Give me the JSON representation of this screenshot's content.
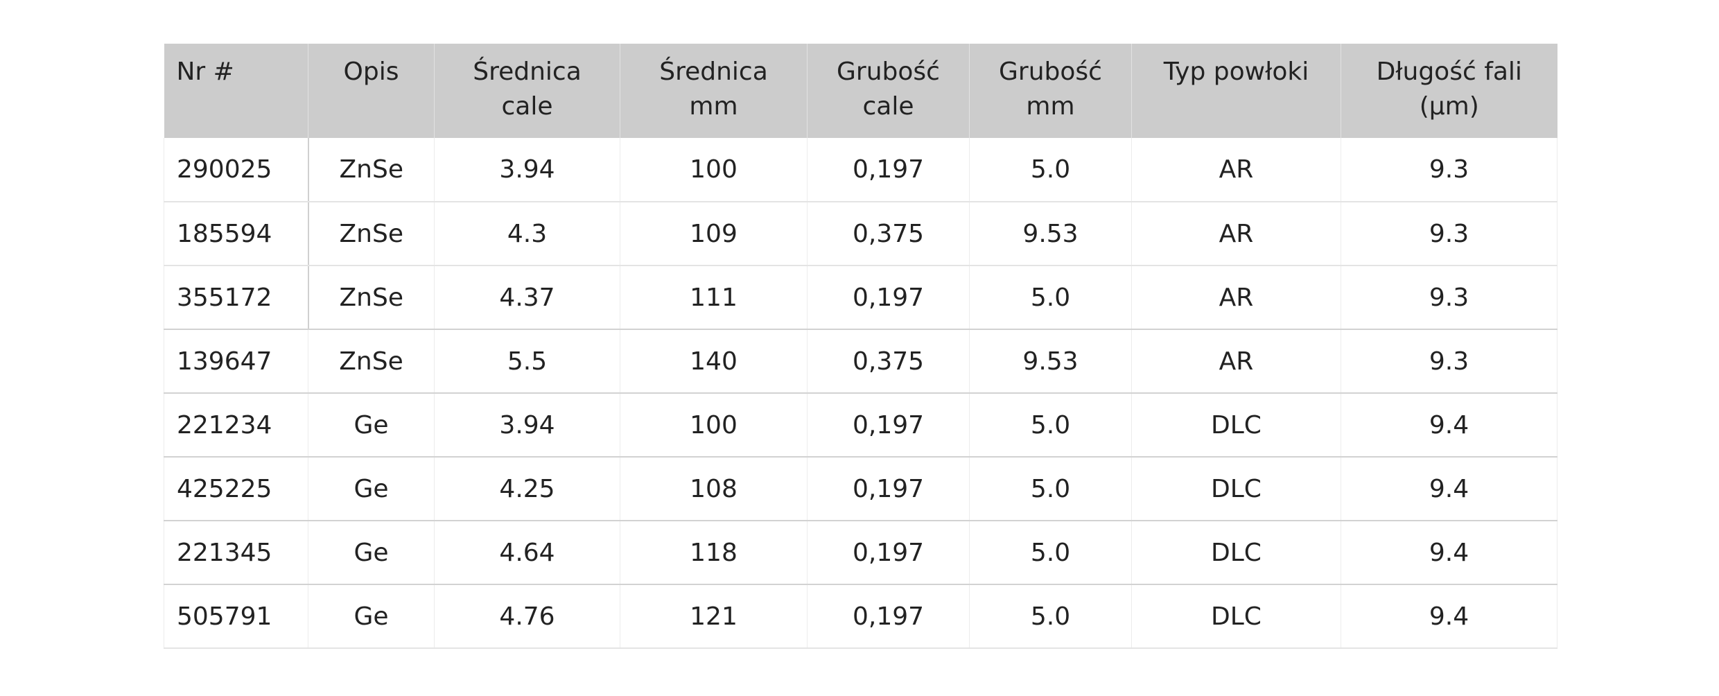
{
  "table": {
    "headers": [
      [
        "Nr #"
      ],
      [
        "Opis"
      ],
      [
        "Średnica",
        "cale"
      ],
      [
        "Średnica",
        "mm"
      ],
      [
        "Grubość",
        "cale"
      ],
      [
        "Grubość",
        "mm"
      ],
      [
        "Typ powłoki"
      ],
      [
        "Długość fali",
        "(µm)"
      ]
    ],
    "rows": [
      [
        "290025",
        "ZnSe",
        "3.94",
        "100",
        "0,197",
        "5.0",
        "AR",
        "9.3"
      ],
      [
        "185594",
        "ZnSe",
        "4.3",
        "109",
        "0,375",
        "9.53",
        "AR",
        "9.3"
      ],
      [
        "355172",
        "ZnSe",
        "4.37",
        "111",
        "0,197",
        "5.0",
        "AR",
        "9.3"
      ],
      [
        "139647",
        "ZnSe",
        "5.5",
        "140",
        "0,375",
        "9.53",
        "AR",
        "9.3"
      ],
      [
        "221234",
        "Ge",
        "3.94",
        "100",
        "0,197",
        "5.0",
        "DLC",
        "9.4"
      ],
      [
        "425225",
        "Ge",
        "4.25",
        "108",
        "0,197",
        "5.0",
        "DLC",
        "9.4"
      ],
      [
        "221345",
        "Ge",
        "4.64",
        "118",
        "0,197",
        "5.0",
        "DLC",
        "9.4"
      ],
      [
        "505791",
        "Ge",
        "4.76",
        "121",
        "0,197",
        "5.0",
        "DLC",
        "9.4"
      ]
    ]
  }
}
